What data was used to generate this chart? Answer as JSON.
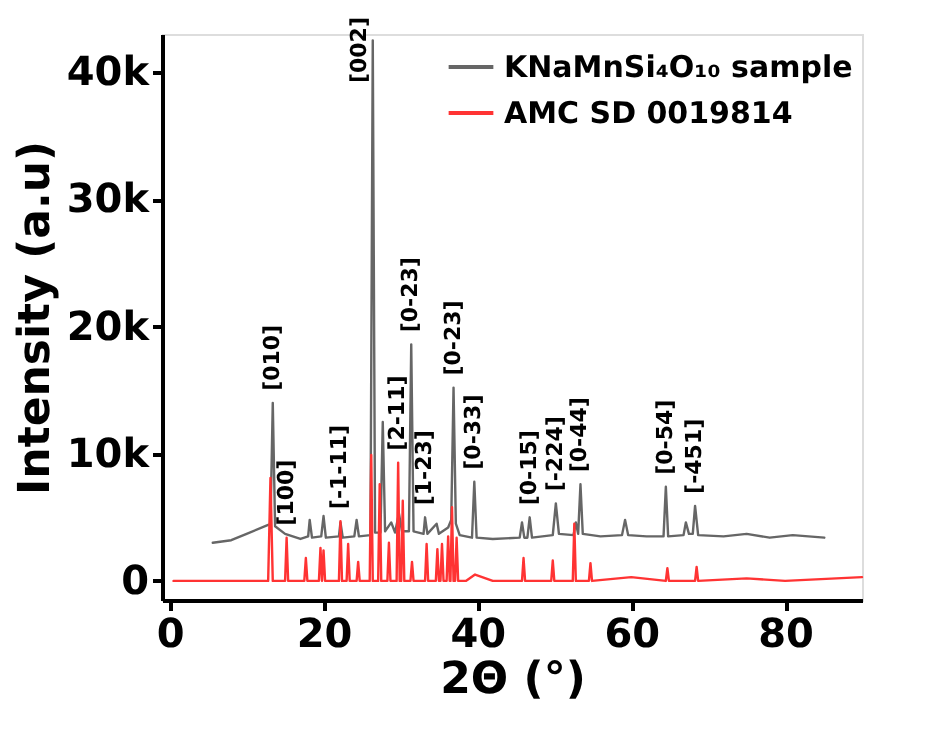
{
  "chart_data": {
    "type": "line",
    "xlabel": "2Θ (°)",
    "ylabel": "Intensity (a.u)",
    "xlim": [
      -1,
      90
    ],
    "xticks": [
      0,
      20,
      40,
      60,
      80
    ],
    "ylim": [
      -1500,
      43000
    ],
    "yticks": [
      0,
      {
        "value": 10000,
        "label": "10k"
      },
      {
        "value": 20000,
        "label": "20k"
      },
      {
        "value": 30000,
        "label": "30k"
      },
      {
        "value": 40000,
        "label": "40k"
      }
    ],
    "grid": false,
    "legend": "top right",
    "marker": "none",
    "line_style": "solid",
    "series": [
      {
        "name": "KNaMnSi₄O₁₀ sample",
        "color": "#666666",
        "x": [
          5.6,
          8,
          10,
          12.8,
          13.1,
          13.4,
          13.7,
          15,
          17,
          18,
          18.2,
          18.5,
          19.7,
          20,
          20.3,
          22,
          22.2,
          22.5,
          24,
          24.3,
          24.6,
          26.1,
          26.4,
          26.7,
          27.4,
          27.7,
          28,
          28.8,
          29.3,
          29.8,
          30.2,
          31.1,
          31.4,
          31.7,
          33,
          33.2,
          33.5,
          34.7,
          35,
          36.2,
          36.6,
          36.9,
          37.2,
          37.7,
          39.3,
          39.6,
          39.9,
          42,
          45.5,
          45.8,
          46.1,
          46.5,
          46.8,
          47.1,
          49.8,
          50.2,
          50.6,
          52.5,
          52.8,
          53.1,
          53.4,
          53.7,
          56,
          58.8,
          59.2,
          59.6,
          62,
          64.2,
          64.5,
          64.8,
          66.8,
          67.1,
          67.5,
          68,
          68.3,
          68.7,
          72,
          75,
          78,
          81,
          85.1
        ],
        "values": [
          3000,
          3200,
          3700,
          4400,
          4500,
          14000,
          4300,
          3700,
          3300,
          3500,
          4800,
          3400,
          3500,
          5100,
          3400,
          3500,
          4600,
          3400,
          3500,
          4800,
          3500,
          3600,
          42500,
          3800,
          3800,
          12500,
          3900,
          4600,
          3800,
          5300,
          3900,
          3900,
          18600,
          3900,
          3700,
          5000,
          3700,
          4500,
          3700,
          4200,
          4800,
          15200,
          4500,
          3600,
          3400,
          7800,
          3400,
          3300,
          3400,
          4600,
          3400,
          3400,
          5000,
          3400,
          3600,
          6100,
          3700,
          3600,
          4600,
          3700,
          7600,
          3700,
          3500,
          3600,
          4800,
          3600,
          3500,
          3500,
          7400,
          3500,
          3600,
          4600,
          3700,
          3700,
          5900,
          3600,
          3500,
          3700,
          3400,
          3600,
          3400
        ]
      },
      {
        "name": "AMC SD 0019814",
        "color": "#ff3333",
        "x": [
          0.5,
          12.8,
          13.1,
          13.4,
          15,
          15.2,
          15.4,
          17.5,
          17.7,
          17.9,
          19.4,
          19.6,
          19.8,
          20,
          20.2,
          22,
          22.2,
          22.4,
          23,
          23.2,
          23.4,
          24.3,
          24.5,
          24.7,
          26,
          26.2,
          26.4,
          27.1,
          27.3,
          27.5,
          28.3,
          28.5,
          28.7,
          29.5,
          29.7,
          29.9,
          30.1,
          30.3,
          30.5,
          31.3,
          31.5,
          31.7,
          33.2,
          33.4,
          33.6,
          34.6,
          34.8,
          35,
          35.2,
          35.4,
          35.6,
          36,
          36.2,
          36.4,
          36.5,
          36.7,
          36.9,
          37.1,
          37.3,
          37.5,
          38.5,
          39.7,
          42,
          45.8,
          46,
          46.2,
          49.6,
          49.8,
          50,
          52.4,
          52.6,
          52.8,
          54.5,
          54.7,
          54.9,
          60,
          64.5,
          64.7,
          64.9,
          68.3,
          68.5,
          68.7,
          75,
          80,
          90
        ],
        "values": [
          0,
          0,
          8100,
          0,
          0,
          3400,
          0,
          0,
          1800,
          0,
          0,
          2600,
          0,
          2400,
          0,
          0,
          4700,
          0,
          0,
          2900,
          0,
          0,
          1500,
          0,
          0,
          9900,
          0,
          0,
          7600,
          0,
          0,
          3000,
          0,
          0,
          9300,
          0,
          0,
          6300,
          0,
          0,
          1500,
          0,
          0,
          2900,
          0,
          0,
          2500,
          0,
          0,
          2900,
          0,
          0,
          3500,
          0,
          0,
          5800,
          0,
          0,
          3400,
          0,
          0,
          500,
          0,
          0,
          1800,
          0,
          0,
          1600,
          0,
          0,
          4500,
          0,
          0,
          1400,
          0,
          300,
          0,
          1000,
          0,
          0,
          1100,
          0,
          200,
          0,
          300
        ]
      }
    ],
    "annotations": [
      {
        "text": "[010]",
        "x": 13.4,
        "y": 14000
      },
      {
        "text": "[100]",
        "x": 15.2,
        "y": 3400
      },
      {
        "text": "[-1-11]",
        "x": 22.2,
        "y": 4700
      },
      {
        "text": "[002]",
        "x": 24.8,
        "y": 38200
      },
      {
        "text": "[2-11]",
        "x": 29.7,
        "y": 9300
      },
      {
        "text": "[0-23]",
        "x": 31.4,
        "y": 18600
      },
      {
        "text": "[1-23]",
        "x": 33.2,
        "y": 5000
      },
      {
        "text": "[0-23]",
        "x": 36.9,
        "y": 15200
      },
      {
        "text": "[0-33]",
        "x": 39.6,
        "y": 7800
      },
      {
        "text": "[0-15]",
        "x": 46.8,
        "y": 5000
      },
      {
        "text": "[-224]",
        "x": 50.2,
        "y": 6100
      },
      {
        "text": "[0-44]",
        "x": 53.4,
        "y": 7600
      },
      {
        "text": "[0-54]",
        "x": 64.5,
        "y": 7400
      },
      {
        "text": "[-451]",
        "x": 68.3,
        "y": 5900
      }
    ]
  }
}
